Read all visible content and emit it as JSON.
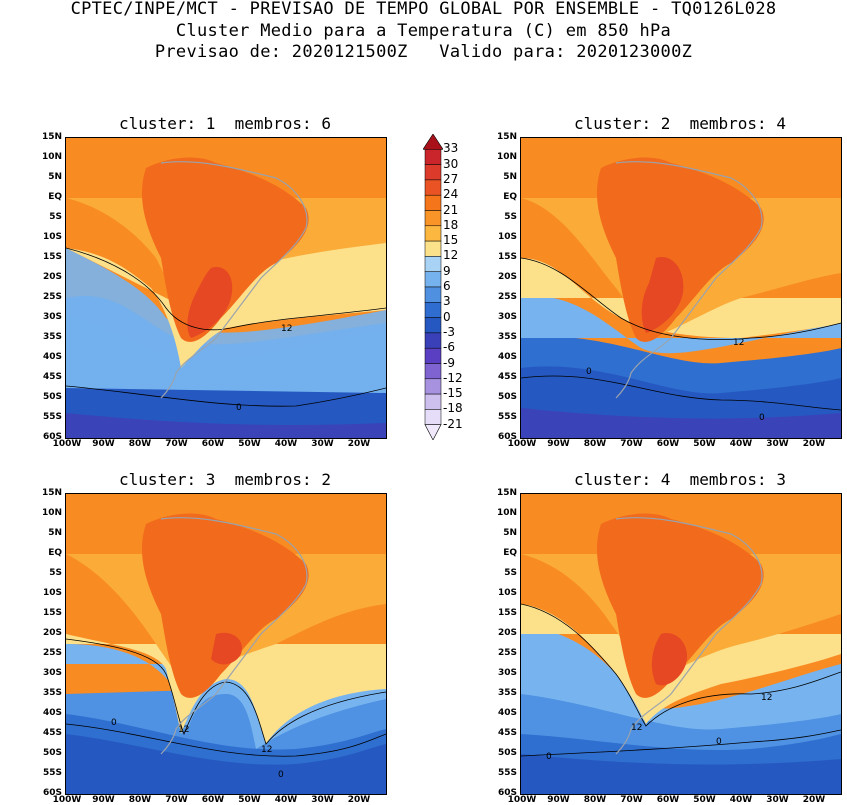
{
  "header": {
    "line1": "CPTEC/INPE/MCT - PREVISAO DE TEMPO GLOBAL POR ENSEMBLE - TQ0126L028",
    "line2": "Cluster Medio para a Temperatura (C) em 850 hPa",
    "line3": "Previsao de: 2020121500Z   Valido para: 2020123000Z"
  },
  "panels": [
    {
      "title": "cluster: 1  membros: 6",
      "contour_labels": [
        "12",
        "0"
      ]
    },
    {
      "title": "cluster: 2  membros: 4",
      "contour_labels": [
        "12",
        "0",
        "0"
      ]
    },
    {
      "title": "cluster: 3  membros: 2",
      "contour_labels": [
        "0",
        "12",
        "12",
        "0"
      ]
    },
    {
      "title": "cluster: 4  membros: 3",
      "contour_labels": [
        "12",
        "12",
        "0",
        "0"
      ]
    }
  ],
  "lat_labels": [
    "15N",
    "10N",
    "5N",
    "EQ",
    "5S",
    "10S",
    "15S",
    "20S",
    "25S",
    "30S",
    "35S",
    "40S",
    "45S",
    "50S",
    "55S",
    "60S"
  ],
  "lon_labels": [
    "100W",
    "90W",
    "80W",
    "70W",
    "60W",
    "50W",
    "40W",
    "30W",
    "20W"
  ],
  "colorbar": {
    "labels": [
      "33",
      "30",
      "27",
      "24",
      "21",
      "18",
      "15",
      "12",
      "9",
      "6",
      "3",
      "0",
      "-3",
      "-6",
      "-9",
      "-12",
      "-15",
      "-18",
      "-21"
    ],
    "colors": [
      "#a8111a",
      "#c9252a",
      "#dc3b2c",
      "#ea5424",
      "#f5751b",
      "#f99528",
      "#fbb740",
      "#fce18b",
      "#a9d3f5",
      "#76b3ee",
      "#4f90e1",
      "#2f6ed0",
      "#2558c0",
      "#3a41b8",
      "#5a3fc2",
      "#7f64d1",
      "#a792df",
      "#cdbfee",
      "#e6ddf8"
    ]
  },
  "palette": {
    "t24": "#e64823",
    "t21": "#f26b1c",
    "t18": "#f88b22",
    "t15": "#fbab38",
    "t12": "#fde08a",
    "t9": "#a9d3f5",
    "t6": "#77b4ef",
    "t3": "#4f91e2",
    "t0": "#2f6fd0",
    "tm3": "#2559c1",
    "tm6": "#3b43b9",
    "tm9": "#5a40c3"
  }
}
